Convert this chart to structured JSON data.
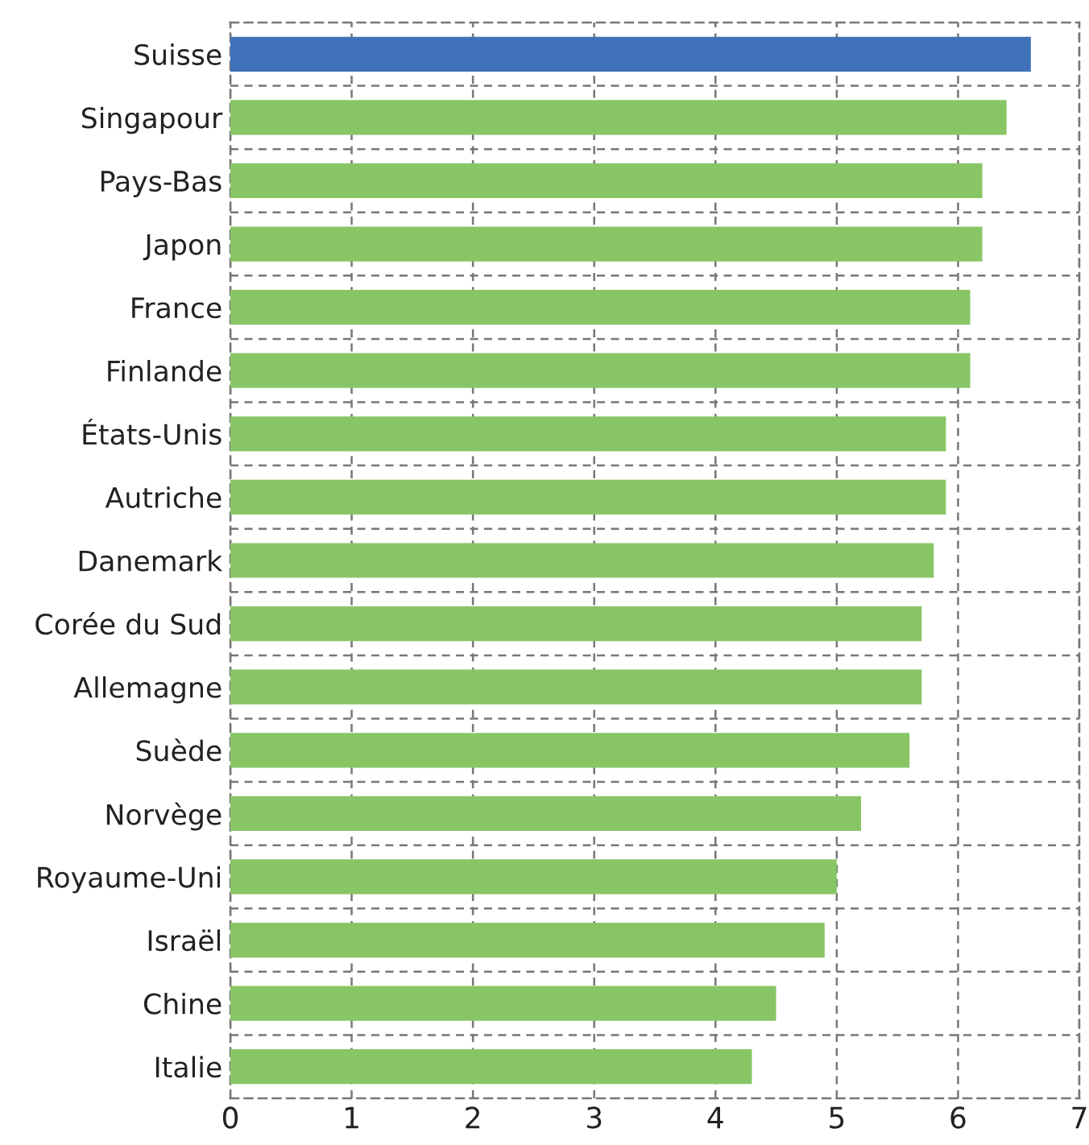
{
  "chart_data": {
    "type": "bar",
    "orientation": "horizontal",
    "categories": [
      "Suisse",
      "Singapour",
      "Pays-Bas",
      "Japon",
      "France",
      "Finlande",
      "États-Unis",
      "Autriche",
      "Danemark",
      "Corée du Sud",
      "Allemagne",
      "Suède",
      "Norvège",
      "Royaume-Uni",
      "Israël",
      "Chine",
      "Italie"
    ],
    "values": [
      6.6,
      6.4,
      6.2,
      6.2,
      6.1,
      6.1,
      5.9,
      5.9,
      5.8,
      5.7,
      5.7,
      5.6,
      5.2,
      5.0,
      4.9,
      4.5,
      4.3
    ],
    "colors": [
      "#3f72b9",
      "#88c665",
      "#88c665",
      "#88c665",
      "#88c665",
      "#88c665",
      "#88c665",
      "#88c665",
      "#88c665",
      "#88c665",
      "#88c665",
      "#88c665",
      "#88c665",
      "#88c665",
      "#88c665",
      "#88c665",
      "#88c665"
    ],
    "xlim": [
      0,
      7
    ],
    "xticks": [
      0,
      1,
      2,
      3,
      4,
      5,
      6,
      7
    ],
    "grid": true
  }
}
